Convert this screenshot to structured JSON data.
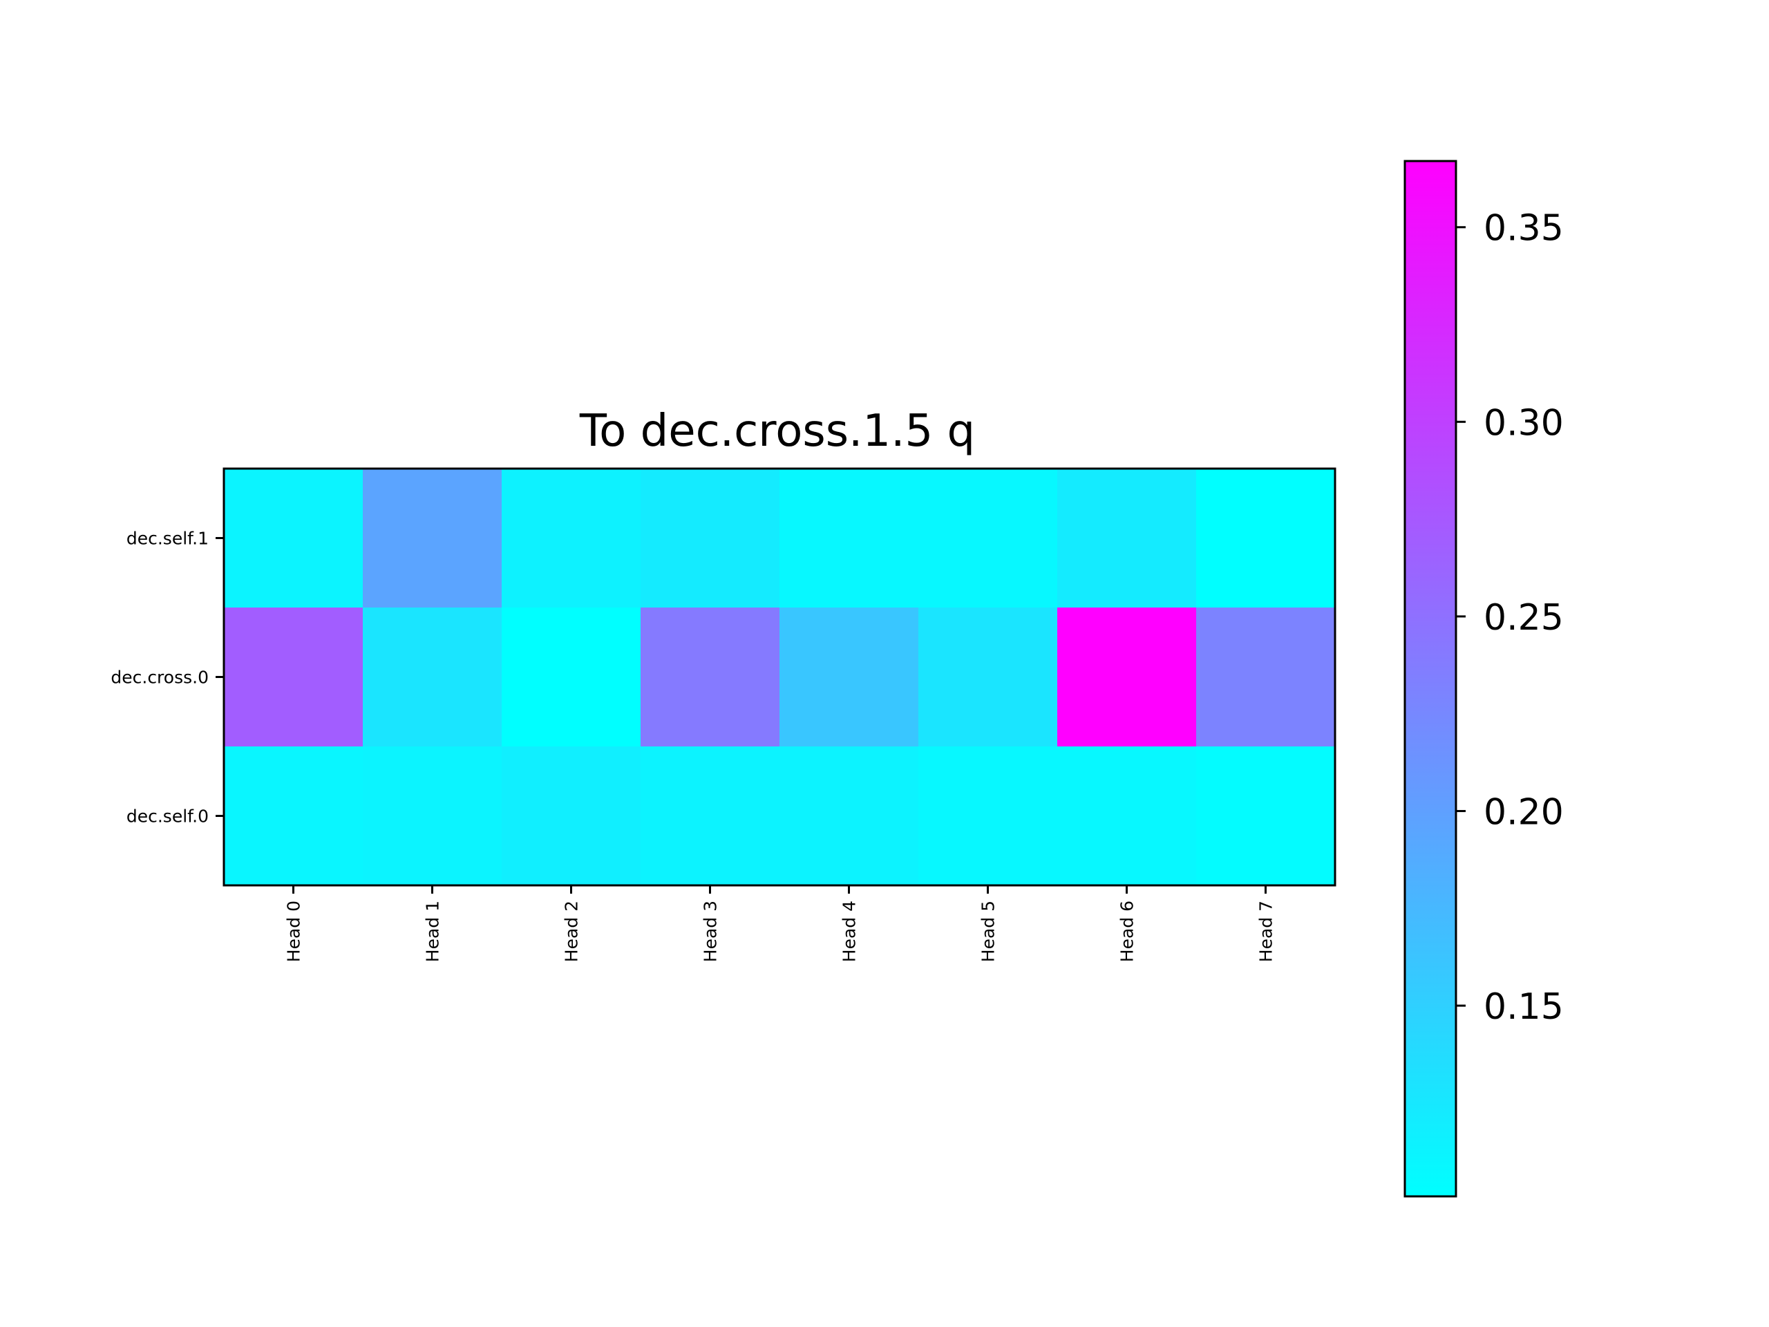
{
  "chart_data": {
    "type": "heatmap",
    "title": "To dec.cross.1.5 q",
    "x_categories": [
      "Head 0",
      "Head 1",
      "Head 2",
      "Head 3",
      "Head 4",
      "Head 5",
      "Head 6",
      "Head 7"
    ],
    "y_categories": [
      "dec.self.1",
      "dec.cross.0",
      "dec.self.0"
    ],
    "values": [
      [
        0.112,
        0.196,
        0.115,
        0.122,
        0.108,
        0.108,
        0.122,
        0.101
      ],
      [
        0.27,
        0.128,
        0.101,
        0.24,
        0.16,
        0.128,
        0.367,
        0.23
      ],
      [
        0.11,
        0.112,
        0.118,
        0.114,
        0.114,
        0.108,
        0.108,
        0.104
      ]
    ],
    "colormap": "cool",
    "color_range": [
      0.101,
      0.367
    ],
    "colorbar": {
      "ticks": [
        0.15,
        0.2,
        0.25,
        0.3,
        0.35
      ],
      "tick_labels": [
        "0.15",
        "0.20",
        "0.25",
        "0.30",
        "0.35"
      ],
      "placement": "right"
    },
    "colormap_low_color": "#00ffff",
    "colormap_high_color": "#ff00ff",
    "grid": false
  }
}
